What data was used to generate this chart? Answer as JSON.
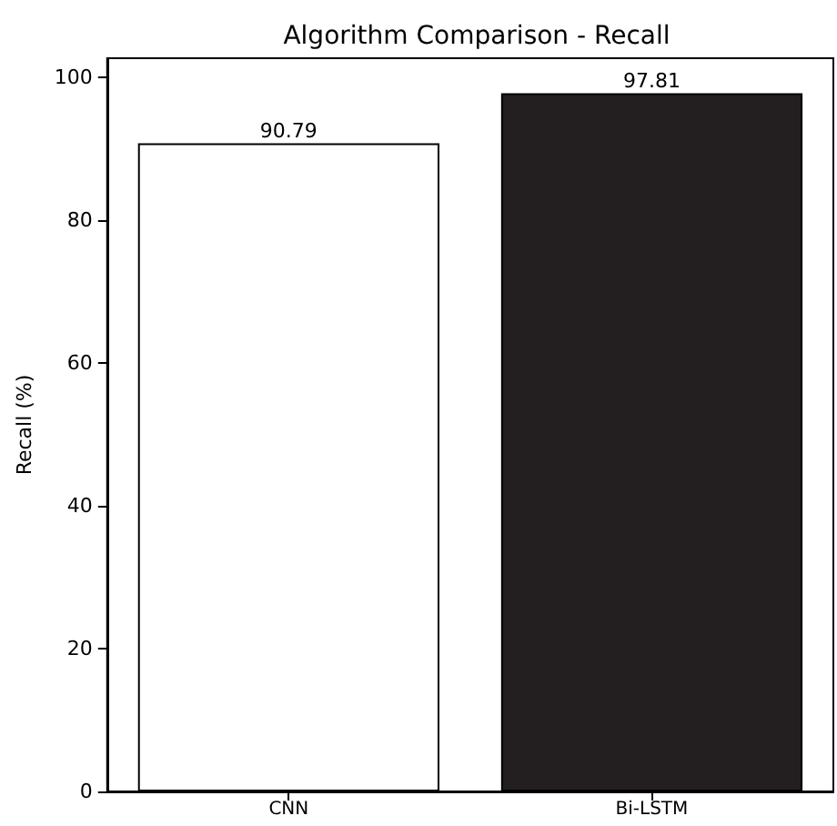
{
  "chart_data": {
    "type": "bar",
    "title": "Algorithm Comparison - Recall",
    "ylabel": "Recall (%)",
    "categories": [
      "CNN",
      "Bi-LSTM"
    ],
    "values": [
      90.79,
      97.81
    ],
    "colors": [
      "#ffffff",
      "#231f20"
    ],
    "ylim": [
      0,
      102.7
    ],
    "yticks": [
      0,
      20,
      40,
      60,
      80,
      100
    ],
    "grid": false,
    "data_labels": true
  }
}
